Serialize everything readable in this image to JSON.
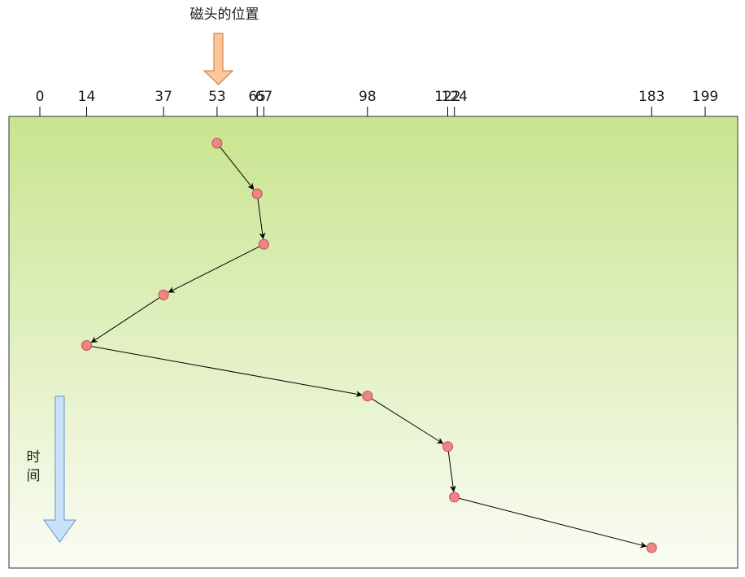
{
  "title": "磁头的位置",
  "time_label": [
    "时",
    "间"
  ],
  "head_start": 53,
  "track_min": 0,
  "track_max": 199,
  "tick_values": [
    "0",
    "14",
    "37",
    "53",
    "65",
    "67",
    "98",
    "122",
    "124",
    "183",
    "199"
  ],
  "sequence": [
    53,
    65,
    67,
    37,
    14,
    98,
    122,
    124,
    183
  ],
  "colors": {
    "panel_top": "#c9e48f",
    "panel_bottom": "#fafcf4",
    "node_fill": "#f08484",
    "head_arrow": "#fbc79a",
    "time_arrow": "#c9e2fb"
  }
}
